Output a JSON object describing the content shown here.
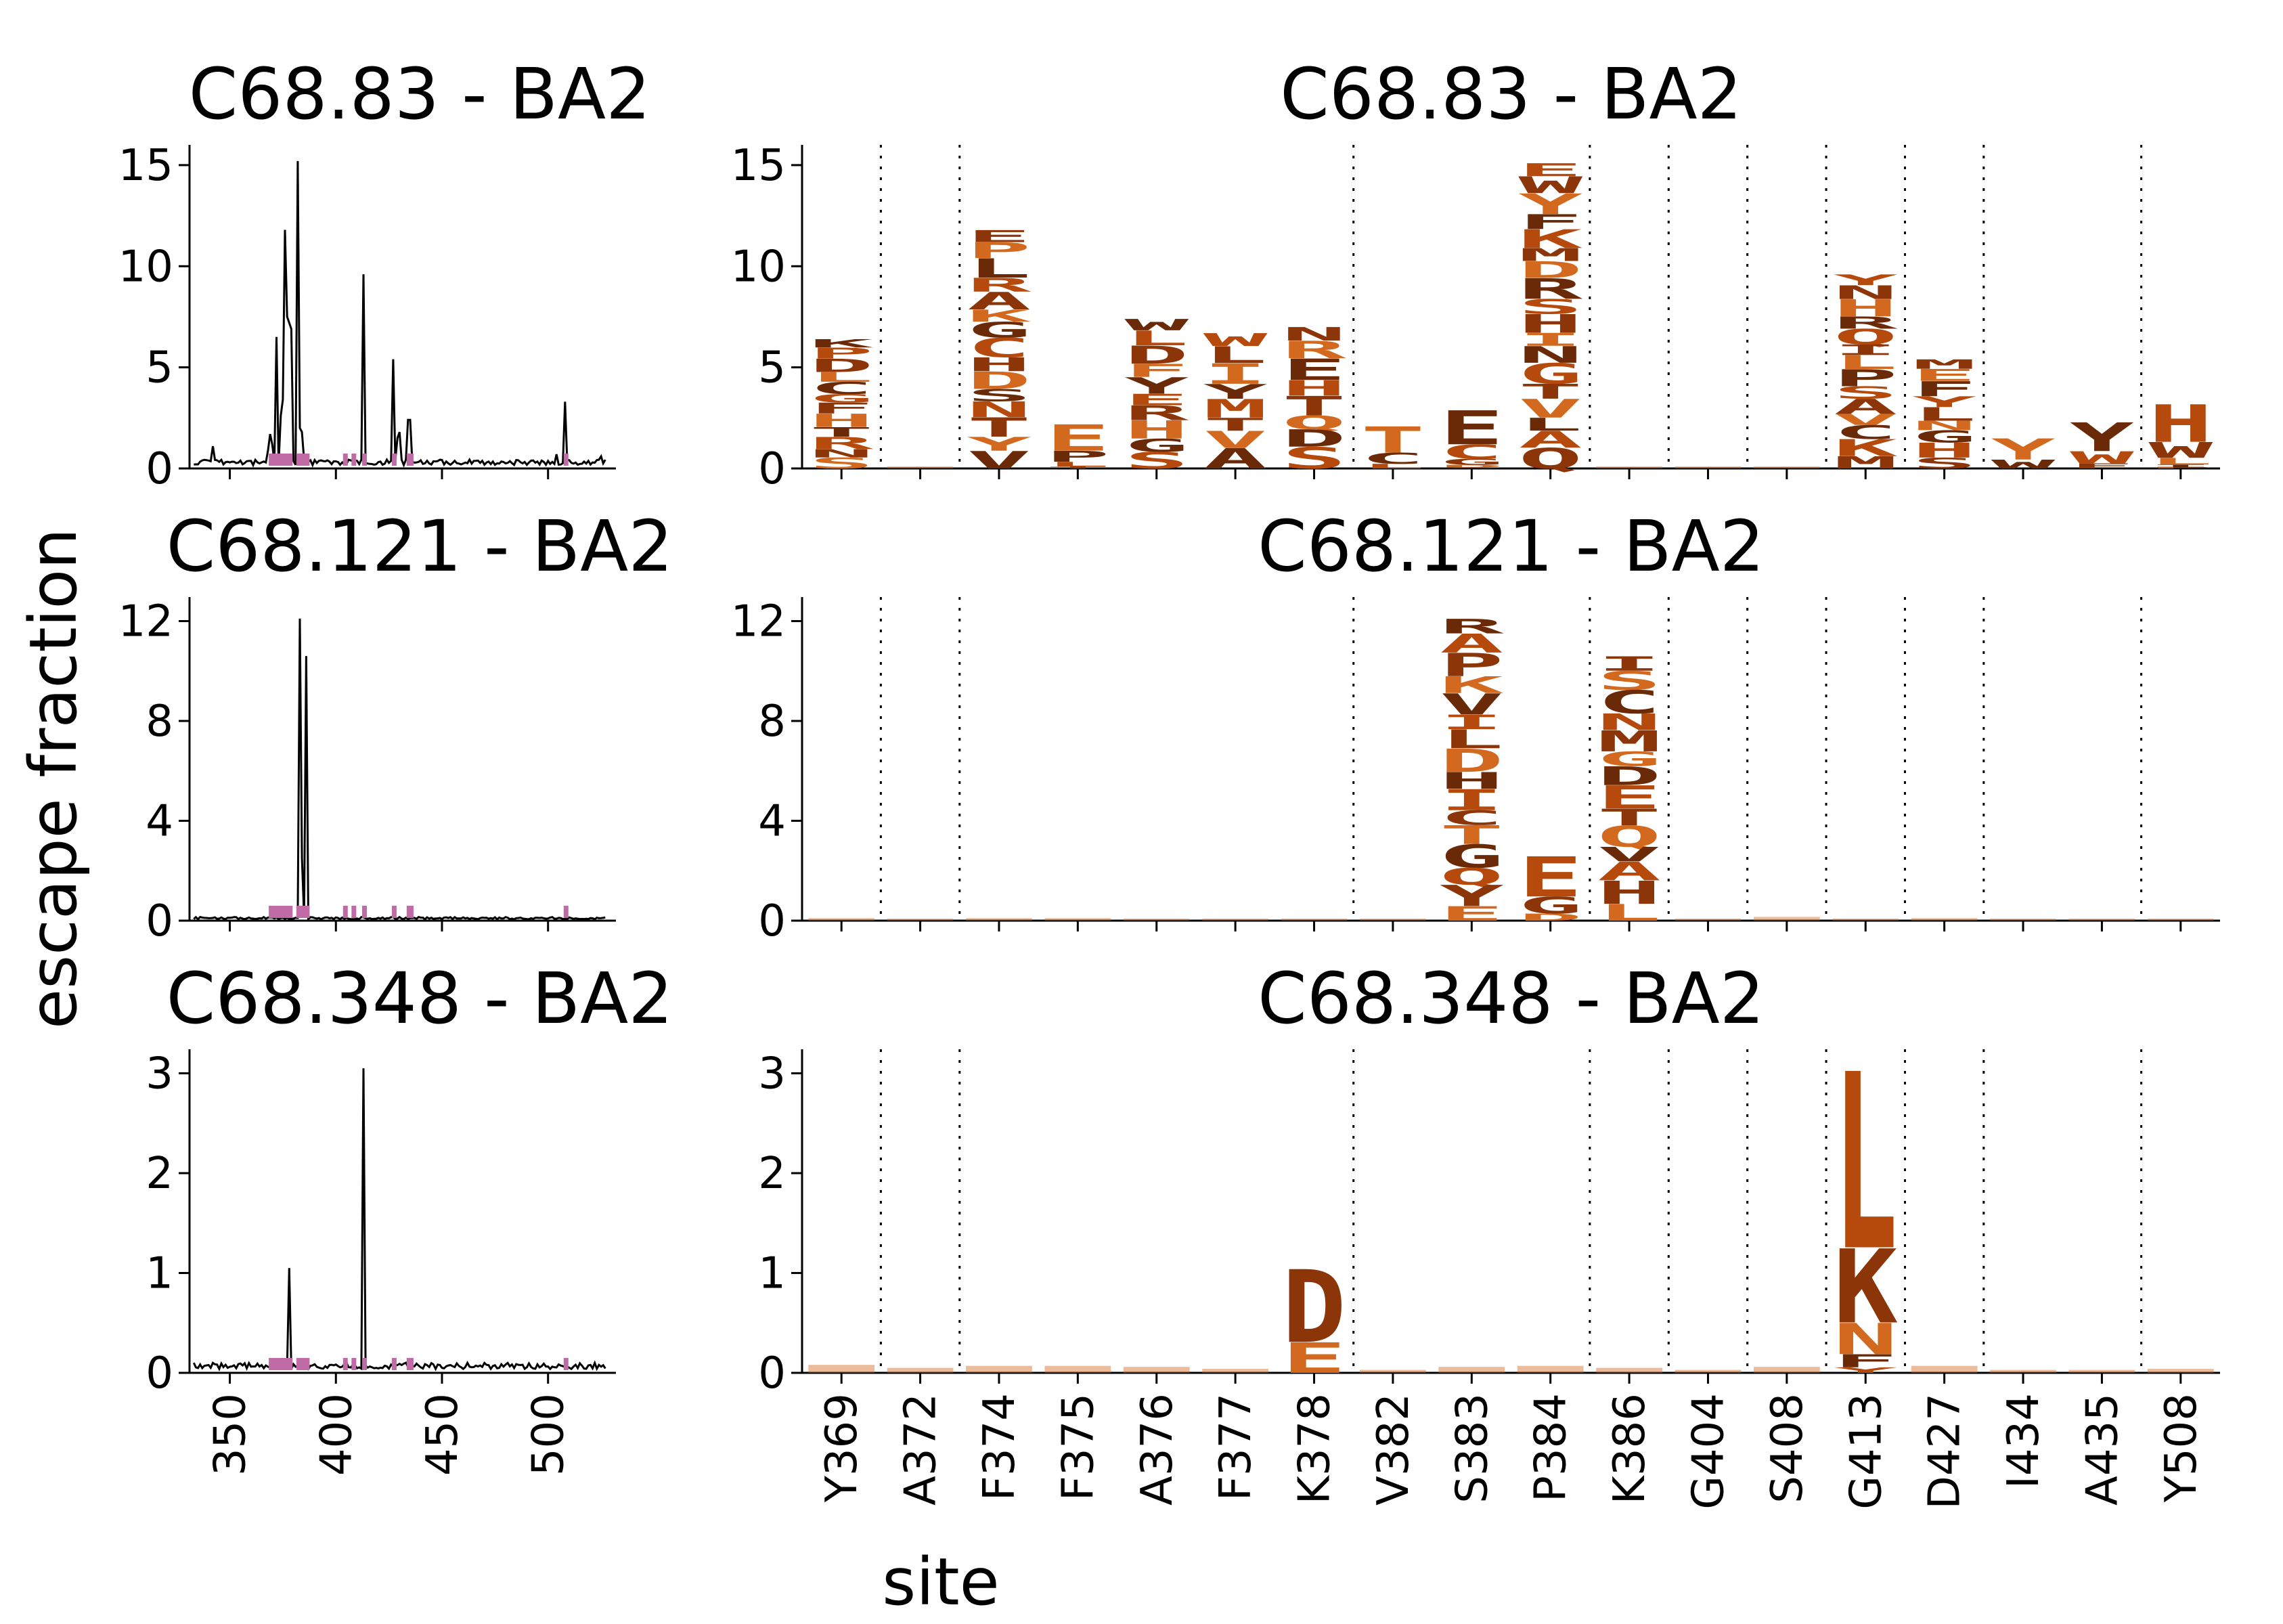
{
  "figure": {
    "ylabel": "escape fraction",
    "xlabel": "site"
  },
  "colors": {
    "line": "#000000",
    "marker": "#c06aa6",
    "amino_acids": {
      "dark": "#6b2a07",
      "mid": "#8c3508",
      "orange": "#b54a0c",
      "light": "#d2691e"
    }
  },
  "chart_data": [
    {
      "type": "line",
      "title": "C68.83 - BA2",
      "xlim": [
        331,
        532
      ],
      "ylim": [
        0,
        15.8
      ],
      "yticks": [
        0,
        5,
        10,
        15
      ],
      "xticks": [
        350,
        400,
        450,
        500
      ],
      "baseline": 0.3,
      "peaks": [
        {
          "x": 342,
          "y": 1.1
        },
        {
          "x": 368,
          "y": 0.9
        },
        {
          "x": 369,
          "y": 1.7
        },
        {
          "x": 370,
          "y": 1.2
        },
        {
          "x": 372,
          "y": 6.5
        },
        {
          "x": 374,
          "y": 2.6
        },
        {
          "x": 375,
          "y": 3.4
        },
        {
          "x": 376,
          "y": 11.8
        },
        {
          "x": 377,
          "y": 7.5
        },
        {
          "x": 378,
          "y": 7.2
        },
        {
          "x": 379,
          "y": 6.9
        },
        {
          "x": 382,
          "y": 15.2
        },
        {
          "x": 383,
          "y": 2.0
        },
        {
          "x": 384,
          "y": 1.8
        },
        {
          "x": 413,
          "y": 9.6
        },
        {
          "x": 427,
          "y": 5.4
        },
        {
          "x": 429,
          "y": 1.5
        },
        {
          "x": 430,
          "y": 1.8
        },
        {
          "x": 434,
          "y": 2.4
        },
        {
          "x": 435,
          "y": 2.4
        },
        {
          "x": 504,
          "y": 0.7
        },
        {
          "x": 508,
          "y": 3.3
        },
        {
          "x": 525,
          "y": 0.6
        }
      ],
      "marked_sites": [
        369,
        370,
        371,
        372,
        374,
        375,
        376,
        377,
        378,
        382,
        383,
        384,
        386,
        404,
        408,
        413,
        427,
        434,
        435,
        508
      ]
    },
    {
      "type": "line",
      "title": "C68.121 - BA2",
      "xlim": [
        331,
        532
      ],
      "ylim": [
        0,
        12.8
      ],
      "yticks": [
        0,
        4,
        8,
        12
      ],
      "xticks": [
        350,
        400,
        450,
        500
      ],
      "baseline": 0.1,
      "peaks": [
        {
          "x": 383,
          "y": 12.1
        },
        {
          "x": 384,
          "y": 2.5
        },
        {
          "x": 386,
          "y": 10.6
        }
      ],
      "marked_sites": [
        369,
        370,
        371,
        372,
        374,
        375,
        376,
        377,
        378,
        382,
        383,
        384,
        386,
        404,
        408,
        413,
        427,
        434,
        435,
        508
      ]
    },
    {
      "type": "line",
      "title": "C68.348 - BA2",
      "xlim": [
        331,
        532
      ],
      "ylim": [
        0,
        3.2
      ],
      "yticks": [
        0,
        1,
        2,
        3
      ],
      "xticks": [
        350,
        400,
        450,
        500
      ],
      "baseline": 0.07,
      "peaks": [
        {
          "x": 378,
          "y": 1.05
        },
        {
          "x": 413,
          "y": 3.05
        }
      ],
      "marked_sites": [
        369,
        370,
        371,
        372,
        374,
        375,
        376,
        377,
        378,
        382,
        383,
        384,
        386,
        404,
        408,
        413,
        427,
        434,
        435,
        508
      ]
    },
    {
      "type": "logo",
      "title": "C68.83 - BA2",
      "ylim": [
        0,
        15.8
      ],
      "yticks": [
        0,
        5,
        10,
        15
      ],
      "sites": [
        "Y369",
        "A372",
        "F374",
        "F375",
        "A376",
        "F377",
        "K378",
        "V382",
        "S383",
        "P384",
        "K386",
        "G404",
        "S408",
        "G413",
        "D427",
        "I434",
        "A435",
        "Y508"
      ],
      "group_breaks": [
        1,
        2,
        7,
        10,
        11,
        12,
        13,
        14,
        15,
        17
      ],
      "stacks": [
        {
          "site": "Y369",
          "letters": "KPDLCGFHTRNS",
          "total": 6.4
        },
        {
          "site": "A372",
          "letters": "",
          "total": 0.1
        },
        {
          "site": "F374",
          "letters": "EPLRAKGCHDSNTYV",
          "total": 11.8
        },
        {
          "site": "F375",
          "letters": "EPLT",
          "total": 2.2
        },
        {
          "site": "A376",
          "letters": "WLDFYERHGS",
          "total": 7.4
        },
        {
          "site": "F377",
          "letters": "WLIYMTVA",
          "total": 6.7
        },
        {
          "site": "K378",
          "letters": "NREHTQDS",
          "total": 7.0
        },
        {
          "site": "V382",
          "letters": "TCL",
          "total": 2.1
        },
        {
          "site": "S383",
          "letters": "ECGDA",
          "total": 2.9
        },
        {
          "site": "P384",
          "letters": "EWYFKMDRSHINGTVLAQ",
          "total": 15.1
        },
        {
          "site": "K386",
          "letters": "",
          "total": 0.1
        },
        {
          "site": "G404",
          "letters": "",
          "total": 0.1
        },
        {
          "site": "S408",
          "letters": "",
          "total": 0.1
        },
        {
          "site": "G413",
          "letters": "YNHRQILPSAVCKM",
          "total": 9.6
        },
        {
          "site": "D427",
          "letters": "MEFYLNGHS",
          "total": 5.4
        },
        {
          "site": "I434",
          "letters": "YW",
          "total": 1.5
        },
        {
          "site": "A435",
          "letters": "YWF",
          "total": 2.3
        },
        {
          "site": "Y508",
          "letters": "HWLIF",
          "total": 3.2
        }
      ]
    },
    {
      "type": "logo",
      "title": "C68.121 - BA2",
      "ylim": [
        0,
        12.8
      ],
      "yticks": [
        0,
        4,
        8,
        12
      ],
      "sites": [
        "Y369",
        "A372",
        "F374",
        "F375",
        "A376",
        "F377",
        "K378",
        "V382",
        "S383",
        "P384",
        "K386",
        "G404",
        "S408",
        "G413",
        "D427",
        "I434",
        "A435",
        "Y508"
      ],
      "group_breaks": [
        1,
        2,
        7,
        10,
        11,
        12,
        13,
        14,
        15,
        17
      ],
      "stacks": [
        {
          "site": "Y369",
          "letters": "",
          "total": 0.1
        },
        {
          "site": "A372",
          "letters": "",
          "total": 0.05
        },
        {
          "site": "F374",
          "letters": "",
          "total": 0.1
        },
        {
          "site": "F375",
          "letters": "",
          "total": 0.1
        },
        {
          "site": "A376",
          "letters": "",
          "total": 0.05
        },
        {
          "site": "F377",
          "letters": "",
          "total": 0.05
        },
        {
          "site": "K378",
          "letters": "",
          "total": 0.05
        },
        {
          "site": "V382",
          "letters": "",
          "total": 0.05
        },
        {
          "site": "S383",
          "letters": "RAPKVILDHICTGQYE",
          "total": 12.1
        },
        {
          "site": "P384",
          "letters": "EGD",
          "total": 2.6
        },
        {
          "site": "K386",
          "letters": "ISCNMGDETQVAHL",
          "total": 10.6
        },
        {
          "site": "G404",
          "letters": "",
          "total": 0.05
        },
        {
          "site": "S408",
          "letters": "",
          "total": 0.15
        },
        {
          "site": "G413",
          "letters": "",
          "total": 0.05
        },
        {
          "site": "D427",
          "letters": "",
          "total": 0.1
        },
        {
          "site": "I434",
          "letters": "",
          "total": 0.05
        },
        {
          "site": "A435",
          "letters": "",
          "total": 0.05
        },
        {
          "site": "Y508",
          "letters": "",
          "total": 0.05
        }
      ]
    },
    {
      "type": "logo",
      "title": "C68.348 - BA2",
      "ylim": [
        0,
        3.2
      ],
      "yticks": [
        0,
        1,
        2,
        3
      ],
      "sites": [
        "Y369",
        "A372",
        "F374",
        "F375",
        "A376",
        "F377",
        "K378",
        "V382",
        "S383",
        "P384",
        "K386",
        "G404",
        "S408",
        "G413",
        "D427",
        "I434",
        "A435",
        "Y508"
      ],
      "group_breaks": [
        1,
        2,
        7,
        10,
        11,
        12,
        13,
        14,
        15,
        17
      ],
      "stacks": [
        {
          "site": "Y369",
          "letters": "",
          "total": 0.08
        },
        {
          "site": "A372",
          "letters": "",
          "total": 0.05
        },
        {
          "site": "F374",
          "letters": "",
          "total": 0.07
        },
        {
          "site": "F375",
          "letters": "",
          "total": 0.07
        },
        {
          "site": "A376",
          "letters": "",
          "total": 0.06
        },
        {
          "site": "F377",
          "letters": "",
          "total": 0.04
        },
        {
          "site": "K378",
          "letters": "DE",
          "total": 1.05
        },
        {
          "site": "V382",
          "letters": "",
          "total": 0.03
        },
        {
          "site": "S383",
          "letters": "",
          "total": 0.06
        },
        {
          "site": "P384",
          "letters": "",
          "total": 0.07
        },
        {
          "site": "K386",
          "letters": "",
          "total": 0.05
        },
        {
          "site": "G404",
          "letters": "",
          "total": 0.03
        },
        {
          "site": "S408",
          "letters": "",
          "total": 0.06
        },
        {
          "site": "G413",
          "letters": "LKNFY",
          "total": 3.05
        },
        {
          "site": "D427",
          "letters": "",
          "total": 0.07
        },
        {
          "site": "I434",
          "letters": "",
          "total": 0.03
        },
        {
          "site": "A435",
          "letters": "",
          "total": 0.03
        },
        {
          "site": "Y508",
          "letters": "",
          "total": 0.04
        }
      ]
    }
  ]
}
